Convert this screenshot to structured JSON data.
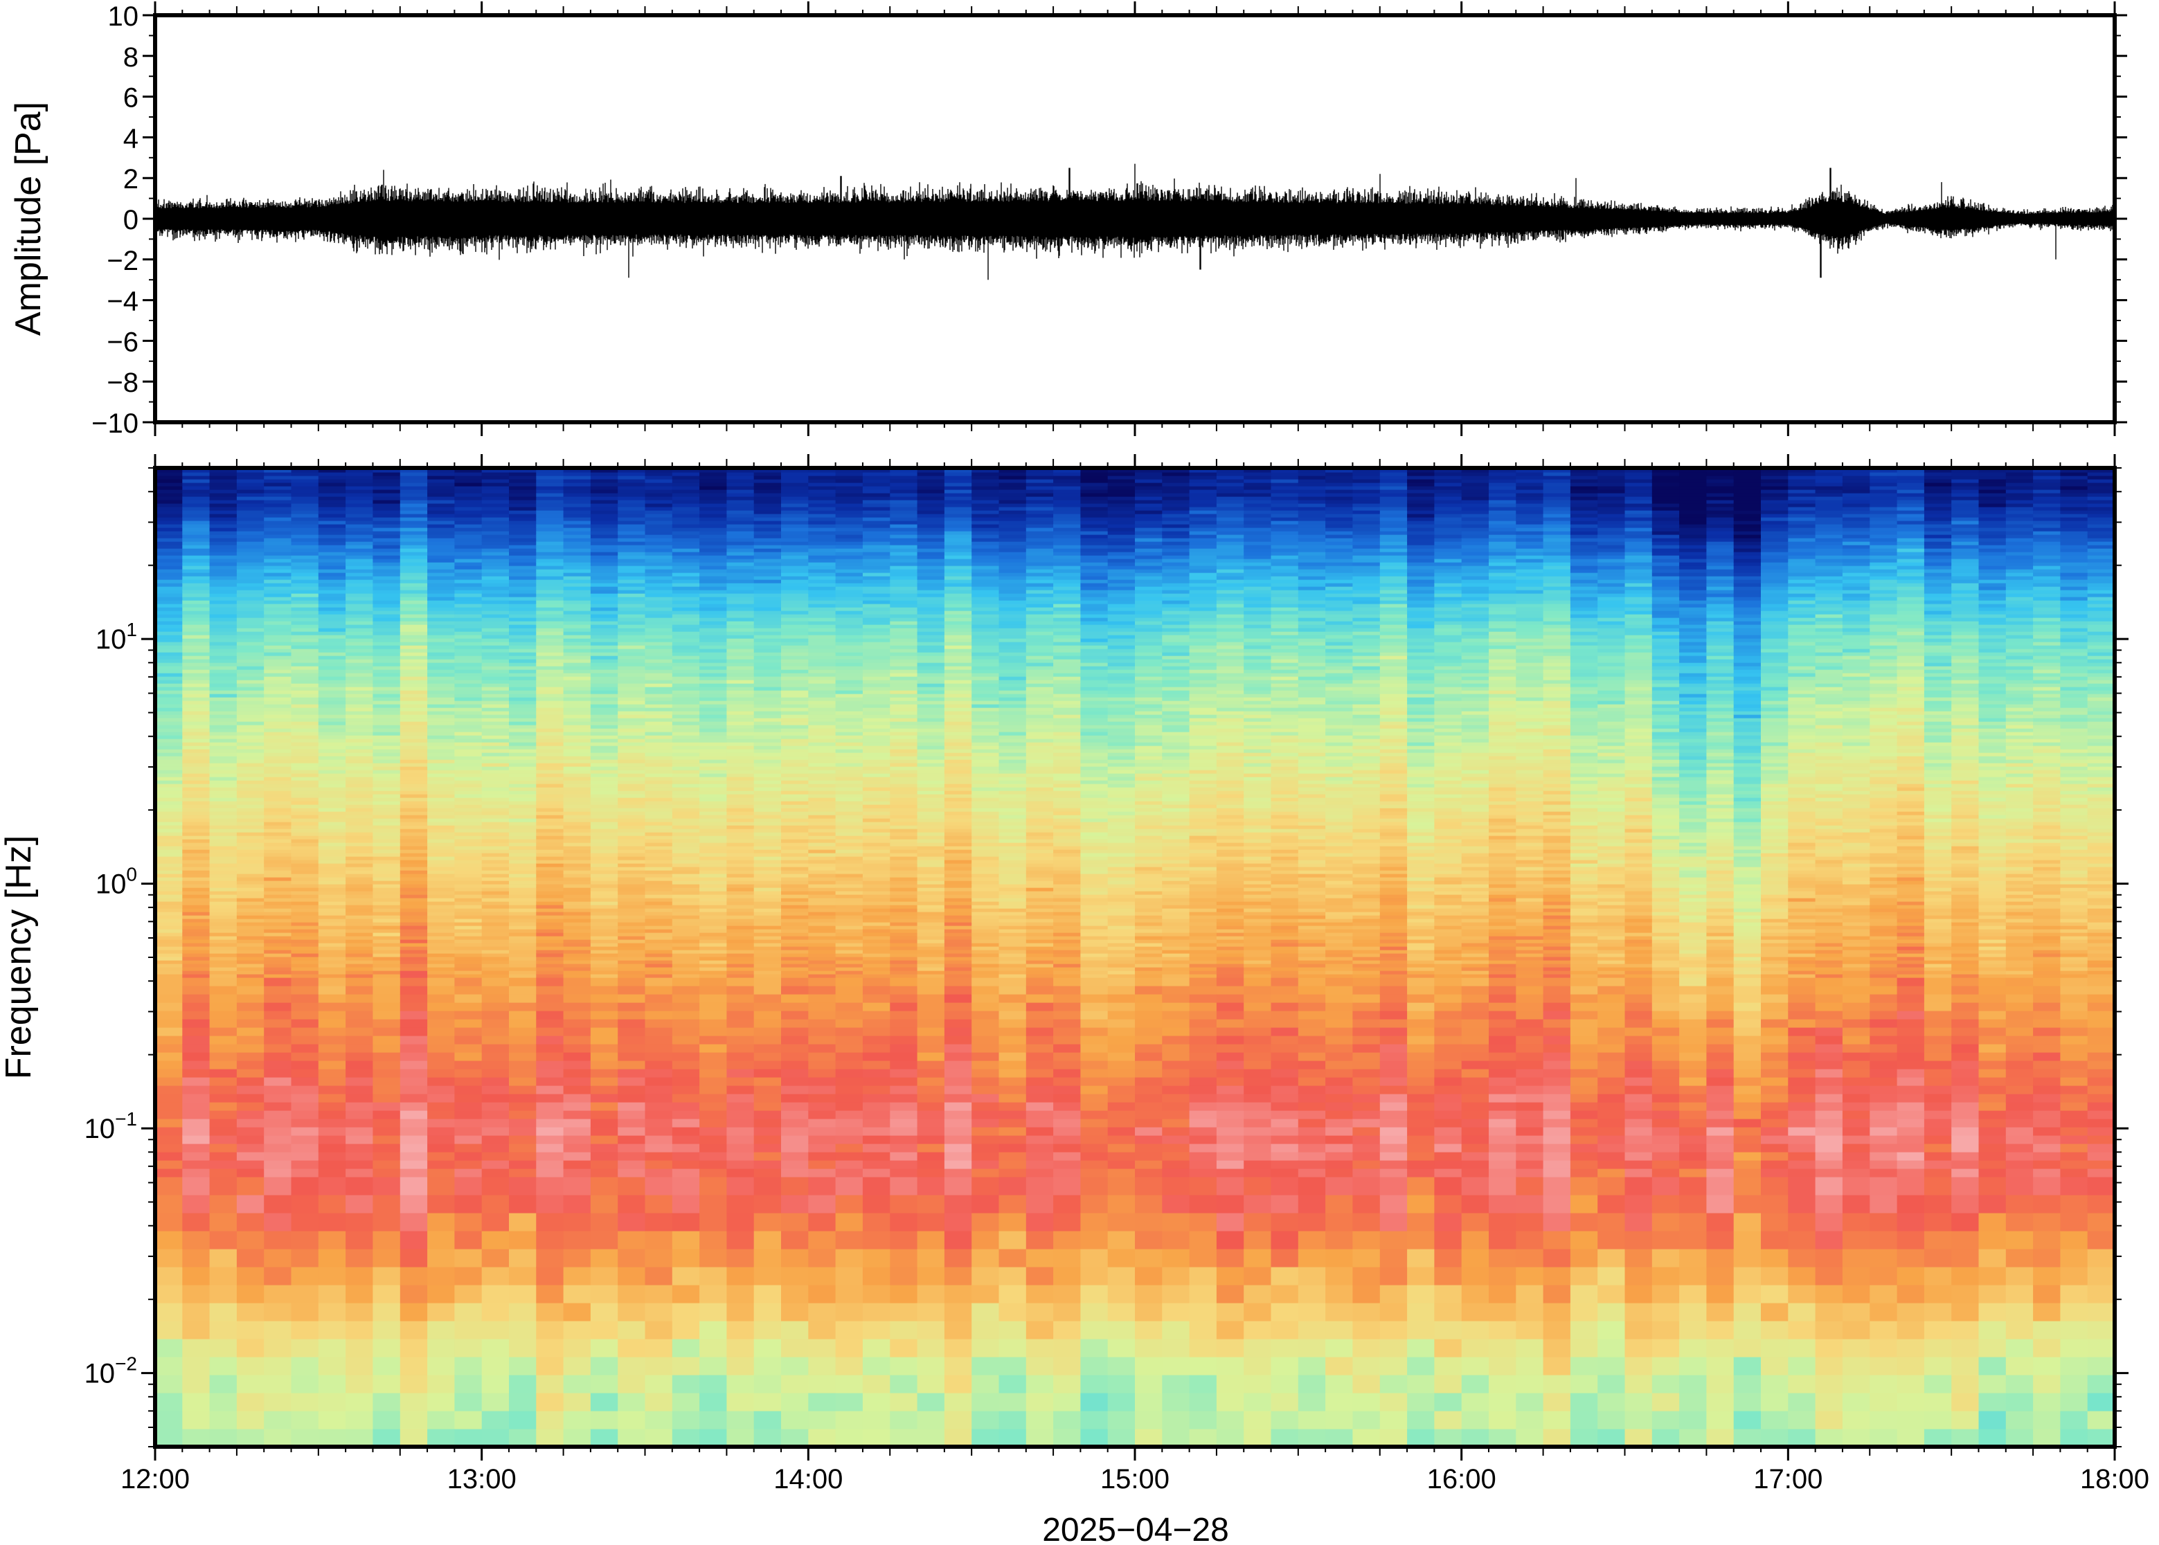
{
  "chart_data": [
    {
      "type": "line",
      "ylabel": "Amplitude [Pa]",
      "ylim": [
        -10,
        10
      ],
      "yticks": [
        "10",
        "8",
        "6",
        "4",
        "2",
        "0",
        "−2",
        "−4",
        "−6",
        "−8",
        "−10"
      ],
      "ytick_values": [
        10,
        8,
        6,
        4,
        2,
        0,
        -2,
        -4,
        -6,
        -8,
        -10
      ],
      "x_range": [
        "2025-04-28 12:00",
        "2025-04-28 18:00"
      ],
      "series": [
        {
          "color": "#000000",
          "envelope_time_h": [
            12.0,
            12.5,
            12.67,
            13.0,
            13.5,
            14.0,
            14.5,
            15.0,
            15.5,
            16.0,
            16.5,
            16.7,
            17.0,
            17.15,
            17.3,
            17.5,
            17.7,
            18.0
          ],
          "envelope_amplitude_pa": [
            0.9,
            1.0,
            1.6,
            1.5,
            1.4,
            1.4,
            1.5,
            1.6,
            1.4,
            1.3,
            0.8,
            0.5,
            0.5,
            1.6,
            0.4,
            1.0,
            0.4,
            0.6
          ],
          "peaks": [
            {
              "t": 12.7,
              "v": 2.4
            },
            {
              "t": 13.45,
              "v": -2.9
            },
            {
              "t": 14.1,
              "v": 2.1
            },
            {
              "t": 14.55,
              "v": -3.0
            },
            {
              "t": 14.8,
              "v": 2.5
            },
            {
              "t": 15.0,
              "v": 2.7
            },
            {
              "t": 15.2,
              "v": -2.5
            },
            {
              "t": 15.75,
              "v": 2.2
            },
            {
              "t": 16.35,
              "v": 2.0
            },
            {
              "t": 17.1,
              "v": -2.9
            },
            {
              "t": 17.13,
              "v": 2.5
            },
            {
              "t": 17.47,
              "v": 1.8
            },
            {
              "t": 17.82,
              "v": -2.0
            }
          ]
        }
      ]
    },
    {
      "type": "heatmap",
      "ylabel": "Frequency [Hz]",
      "ylog": true,
      "ylim": [
        0.005,
        50
      ],
      "ytick_labels": [
        {
          "base": "10",
          "exp": "1",
          "value": 10
        },
        {
          "base": "10",
          "exp": "0",
          "value": 1
        },
        {
          "base": "10",
          "exp": "−1",
          "value": 0.1
        },
        {
          "base": "10",
          "exp": "−2",
          "value": 0.01
        }
      ],
      "xlabel": "2025−04−28",
      "xtick_labels": [
        "12:00",
        "13:00",
        "14:00",
        "15:00",
        "16:00",
        "17:00",
        "18:00"
      ],
      "xtick_hours": [
        12,
        13,
        14,
        15,
        16,
        17,
        18
      ],
      "colormap": [
        "#06075e",
        "#0a2fa8",
        "#1c74dc",
        "#36c4f0",
        "#7ee8c8",
        "#d8f39a",
        "#f7d77a",
        "#f8a548",
        "#f25a50",
        "#f7a8a8"
      ],
      "intensity_profile_by_frequency": {
        "freq_hz": [
          0.005,
          0.01,
          0.02,
          0.05,
          0.1,
          0.2,
          0.5,
          1,
          3,
          10,
          20,
          40
        ],
        "level": [
          4.6,
          5.0,
          6.5,
          8.0,
          8.3,
          7.6,
          6.9,
          6.3,
          5.2,
          4.0,
          2.5,
          0.7
        ]
      },
      "quiet_period_hours": [
        16.5,
        17.0
      ],
      "bright_low_frequency_bursts_hours": [
        17.15,
        17.5
      ]
    }
  ]
}
